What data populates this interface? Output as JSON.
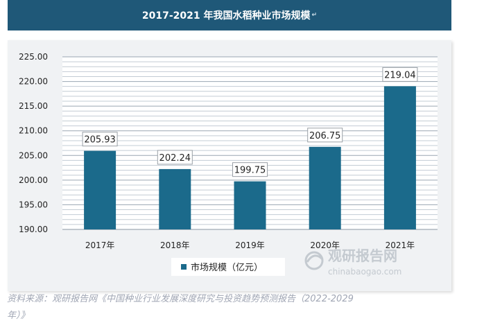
{
  "title": "2017-2021 年我国水稻种业市场规模",
  "title_mark": "↵",
  "source_text": "资料来源：观研报告网《中国种业行业发展深度研究与投资趋势预测报告（2022-2029",
  "source_text_cont": "年）》",
  "watermark": {
    "name": "观研报告网",
    "url": "chinabaogao.com"
  },
  "colors": {
    "bar": "#1b6a8b",
    "title_bg": "#1f5878",
    "grid": "#9aa6b2",
    "panel_bg": "#f0f2f4"
  },
  "chart_data": {
    "type": "bar",
    "categories": [
      "2017年",
      "2018年",
      "2019年",
      "2020年",
      "2021年"
    ],
    "series": [
      {
        "name": "市场规模（亿元）",
        "values": [
          205.93,
          202.24,
          199.75,
          206.75,
          219.04
        ]
      }
    ],
    "data_labels": [
      "205.93",
      "202.24",
      "199.75",
      "206.75",
      "219.04"
    ],
    "ylim": [
      190,
      225
    ],
    "yticks": [
      "190.00",
      "195.00",
      "200.00",
      "205.00",
      "210.00",
      "215.00",
      "220.00",
      "225.00"
    ],
    "ytick_values": [
      190,
      195,
      200,
      205,
      210,
      215,
      220,
      225
    ],
    "grid": true,
    "legend_position": "bottom-left"
  }
}
